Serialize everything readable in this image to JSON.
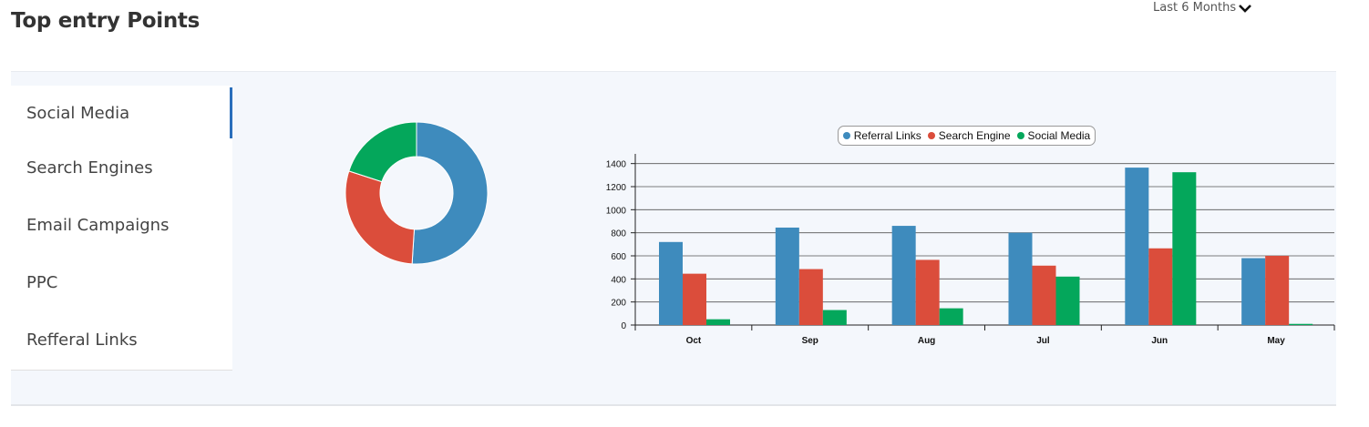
{
  "header": {
    "title": "Top entry Points",
    "period_label": "Last 6 Months"
  },
  "menu": {
    "items": [
      {
        "label": "Social Media",
        "active": true
      },
      {
        "label": "Search Engines",
        "active": false
      },
      {
        "label": "Email Campaigns",
        "active": false
      },
      {
        "label": "PPC",
        "active": false
      },
      {
        "label": "Refferal Links",
        "active": false
      }
    ]
  },
  "colors": {
    "referral": "#3e8bbd",
    "search": "#db4d3b",
    "social": "#04a75b",
    "active_indicator": "#2a6ebb"
  },
  "chart_data": [
    {
      "type": "pie",
      "variant": "donut",
      "slices": [
        {
          "series": "Referral Links",
          "value": 0.51,
          "color": "#3e8bbd"
        },
        {
          "series": "Search Engine",
          "value": 0.29,
          "color": "#db4d3b"
        },
        {
          "series": "Social Media",
          "value": 0.2,
          "color": "#04a75b"
        }
      ]
    },
    {
      "type": "bar",
      "categories": [
        "Oct",
        "Sep",
        "Aug",
        "Jul",
        "Jun",
        "May"
      ],
      "series": [
        {
          "name": "Referral Links",
          "color": "#3e8bbd",
          "values": [
            720,
            845,
            860,
            800,
            1365,
            580
          ]
        },
        {
          "name": "Search Engine",
          "color": "#db4d3b",
          "values": [
            445,
            485,
            565,
            515,
            665,
            600
          ]
        },
        {
          "name": "Social Media",
          "color": "#04a75b",
          "values": [
            50,
            130,
            145,
            420,
            1325,
            10
          ]
        }
      ],
      "ylim": [
        0,
        1500
      ],
      "yticks": [
        0,
        200,
        400,
        600,
        800,
        1000,
        1200,
        1400
      ],
      "grid": true,
      "legend": "top-center"
    }
  ]
}
